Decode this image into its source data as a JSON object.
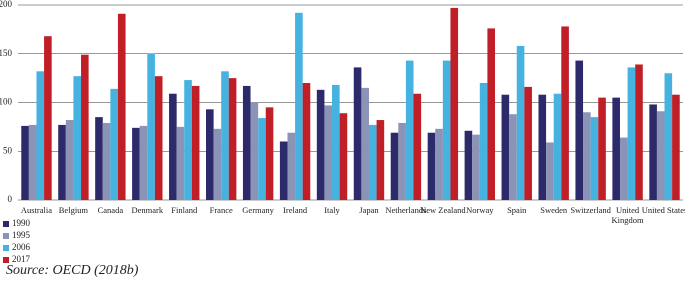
{
  "chart_data": {
    "type": "bar",
    "categories": [
      "Australia",
      "Belgium",
      "Canada",
      "Denmark",
      "Finland",
      "France",
      "Germany",
      "Ireland",
      "Italy",
      "Japan",
      "Netherlands",
      "New Zealand",
      "Norway",
      "Spain",
      "Sweden",
      "Switzerland",
      "United Kingdom",
      "United States"
    ],
    "series": [
      {
        "name": "1990",
        "color": "#2d2a6b",
        "values": [
          76,
          77,
          85,
          74,
          109,
          93,
          117,
          60,
          113,
          136,
          69,
          69,
          71,
          108,
          108,
          143,
          105,
          98
        ]
      },
      {
        "name": "1995",
        "color": "#8b93b6",
        "values": [
          77,
          82,
          79,
          76,
          75,
          73,
          100,
          69,
          97,
          115,
          79,
          73,
          67,
          88,
          59,
          90,
          64,
          91
        ]
      },
      {
        "name": "2006",
        "color": "#45b2df",
        "values": [
          132,
          127,
          114,
          150,
          123,
          132,
          84,
          192,
          118,
          77,
          143,
          143,
          120,
          158,
          109,
          85,
          136,
          130
        ]
      },
      {
        "name": "2017",
        "color": "#c01f28",
        "values": [
          168,
          149,
          191,
          127,
          117,
          125,
          95,
          120,
          89,
          82,
          109,
          197,
          176,
          116,
          178,
          105,
          139,
          108
        ]
      }
    ],
    "ylim": [
      0,
      200
    ],
    "yticks": [
      0,
      50,
      100,
      150,
      200
    ],
    "grid": true,
    "source": "Source: OECD (2018b)"
  }
}
